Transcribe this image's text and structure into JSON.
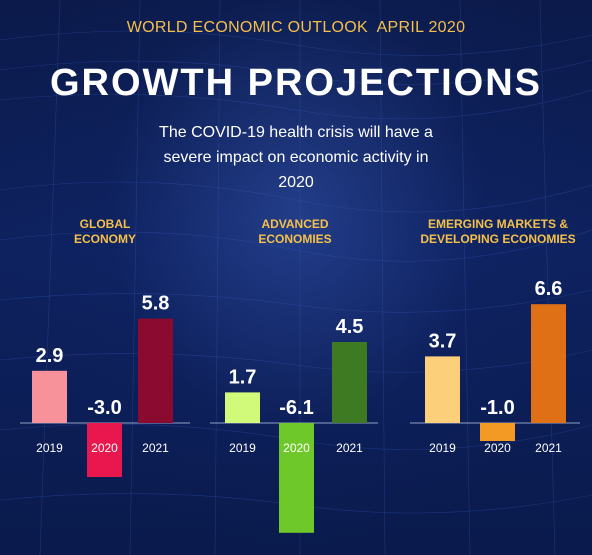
{
  "header": {
    "overline": "WORLD ECONOMIC OUTLOOK  APRIL 2020",
    "title": "GROWTH PROJECTIONS",
    "subtitle": "The COVID-19 health crisis will have a severe impact on economic activity in 2020"
  },
  "chart_data": [
    {
      "type": "bar",
      "title": "GLOBAL ECONOMY",
      "title_lines": [
        "GLOBAL",
        "ECONOMY"
      ],
      "categories": [
        "2019",
        "2020",
        "2021"
      ],
      "values": [
        2.9,
        -3.0,
        5.8
      ],
      "labels": [
        "2.9",
        "-3.0",
        "5.8"
      ],
      "colors": [
        "#f7919a",
        "#e8174e",
        "#8b0a2f"
      ]
    },
    {
      "type": "bar",
      "title": "ADVANCED ECONOMIES",
      "title_lines": [
        "ADVANCED",
        "ECONOMIES"
      ],
      "categories": [
        "2019",
        "2020",
        "2021"
      ],
      "values": [
        1.7,
        -6.1,
        4.5
      ],
      "labels": [
        "1.7",
        "-6.1",
        "4.5"
      ],
      "colors": [
        "#d2fa7a",
        "#6ec82a",
        "#3d7a22"
      ]
    },
    {
      "type": "bar",
      "title": "EMERGING MARKETS & DEVELOPING ECONOMIES",
      "title_lines": [
        "EMERGING MARKETS &",
        "DEVELOPING ECONOMIES"
      ],
      "categories": [
        "2019",
        "2020",
        "2021"
      ],
      "values": [
        3.7,
        -1.0,
        6.6
      ],
      "labels": [
        "3.7",
        "-1.0",
        "6.6"
      ],
      "colors": [
        "#fcd07a",
        "#f39a25",
        "#e07016"
      ]
    }
  ]
}
